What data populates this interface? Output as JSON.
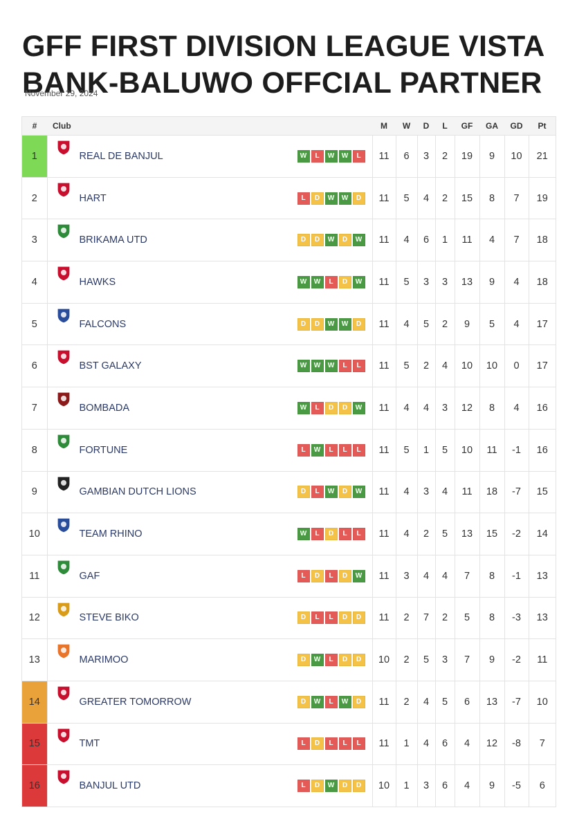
{
  "article": {
    "title": "GFF FIRST DIVISION LEAGUE VISTA BANK-BALUWO OFFCIAL PARTNER",
    "date": "November 29, 2024"
  },
  "table": {
    "headers": [
      "#",
      "Club",
      "M",
      "W",
      "D",
      "L",
      "GF",
      "GA",
      "GD",
      "Pt"
    ],
    "colors": {
      "win": "#4a9a43",
      "loss": "#e35a57",
      "draw": "#f3c246",
      "champion": "#7ed957",
      "playoff": "#e9a13a",
      "relegation": "#dc3a3a"
    },
    "rows": [
      {
        "pos": "1",
        "club": "REAL DE BANJUL",
        "crest": "real-de-banjul-crest",
        "zone": "champion",
        "form": [
          "W",
          "L",
          "W",
          "W",
          "L"
        ],
        "m": "11",
        "w": "6",
        "d": "3",
        "l": "2",
        "gf": "19",
        "ga": "9",
        "gd": "10",
        "pt": "21"
      },
      {
        "pos": "2",
        "club": "HART",
        "crest": "hart-crest",
        "zone": "",
        "form": [
          "L",
          "D",
          "W",
          "W",
          "D"
        ],
        "m": "11",
        "w": "5",
        "d": "4",
        "l": "2",
        "gf": "15",
        "ga": "8",
        "gd": "7",
        "pt": "19"
      },
      {
        "pos": "3",
        "club": "BRIKAMA UTD",
        "crest": "brikama-utd-crest",
        "zone": "",
        "form": [
          "D",
          "D",
          "W",
          "D",
          "W"
        ],
        "m": "11",
        "w": "4",
        "d": "6",
        "l": "1",
        "gf": "11",
        "ga": "4",
        "gd": "7",
        "pt": "18"
      },
      {
        "pos": "4",
        "club": "HAWKS",
        "crest": "hawks-crest",
        "zone": "",
        "form": [
          "W",
          "W",
          "L",
          "D",
          "W"
        ],
        "m": "11",
        "w": "5",
        "d": "3",
        "l": "3",
        "gf": "13",
        "ga": "9",
        "gd": "4",
        "pt": "18"
      },
      {
        "pos": "5",
        "club": "FALCONS",
        "crest": "falcons-crest",
        "zone": "",
        "form": [
          "D",
          "D",
          "W",
          "W",
          "D"
        ],
        "m": "11",
        "w": "4",
        "d": "5",
        "l": "2",
        "gf": "9",
        "ga": "5",
        "gd": "4",
        "pt": "17"
      },
      {
        "pos": "6",
        "club": "BST GALAXY",
        "crest": "bst-galaxy-crest",
        "zone": "",
        "form": [
          "W",
          "W",
          "W",
          "L",
          "L"
        ],
        "m": "11",
        "w": "5",
        "d": "2",
        "l": "4",
        "gf": "10",
        "ga": "10",
        "gd": "0",
        "pt": "17"
      },
      {
        "pos": "7",
        "club": "BOMBADA",
        "crest": "bombada-crest",
        "zone": "",
        "form": [
          "W",
          "L",
          "D",
          "D",
          "W"
        ],
        "m": "11",
        "w": "4",
        "d": "4",
        "l": "3",
        "gf": "12",
        "ga": "8",
        "gd": "4",
        "pt": "16"
      },
      {
        "pos": "8",
        "club": "FORTUNE",
        "crest": "fortune-crest",
        "zone": "",
        "form": [
          "L",
          "W",
          "L",
          "L",
          "L"
        ],
        "m": "11",
        "w": "5",
        "d": "1",
        "l": "5",
        "gf": "10",
        "ga": "11",
        "gd": "-1",
        "pt": "16"
      },
      {
        "pos": "9",
        "club": "GAMBIAN DUTCH LIONS",
        "crest": "gambian-dutch-lions-crest",
        "zone": "",
        "form": [
          "D",
          "L",
          "W",
          "D",
          "W"
        ],
        "m": "11",
        "w": "4",
        "d": "3",
        "l": "4",
        "gf": "11",
        "ga": "18",
        "gd": "-7",
        "pt": "15"
      },
      {
        "pos": "10",
        "club": "TEAM RHINO",
        "crest": "team-rhino-crest",
        "zone": "",
        "form": [
          "W",
          "L",
          "D",
          "L",
          "L"
        ],
        "m": "11",
        "w": "4",
        "d": "2",
        "l": "5",
        "gf": "13",
        "ga": "15",
        "gd": "-2",
        "pt": "14"
      },
      {
        "pos": "11",
        "club": "GAF",
        "crest": "gaf-crest",
        "zone": "",
        "form": [
          "L",
          "D",
          "L",
          "D",
          "W"
        ],
        "m": "11",
        "w": "3",
        "d": "4",
        "l": "4",
        "gf": "7",
        "ga": "8",
        "gd": "-1",
        "pt": "13"
      },
      {
        "pos": "12",
        "club": "STEVE BIKO",
        "crest": "steve-biko-crest",
        "zone": "",
        "form": [
          "D",
          "L",
          "L",
          "D",
          "D"
        ],
        "m": "11",
        "w": "2",
        "d": "7",
        "l": "2",
        "gf": "5",
        "ga": "8",
        "gd": "-3",
        "pt": "13"
      },
      {
        "pos": "13",
        "club": "MARIMOO",
        "crest": "marimoo-crest",
        "zone": "",
        "form": [
          "D",
          "W",
          "L",
          "D",
          "D"
        ],
        "m": "10",
        "w": "2",
        "d": "5",
        "l": "3",
        "gf": "7",
        "ga": "9",
        "gd": "-2",
        "pt": "11"
      },
      {
        "pos": "14",
        "club": "GREATER TOMORROW",
        "crest": "greater-tomorrow-crest",
        "zone": "playoff",
        "form": [
          "D",
          "W",
          "L",
          "W",
          "D"
        ],
        "m": "11",
        "w": "2",
        "d": "4",
        "l": "5",
        "gf": "6",
        "ga": "13",
        "gd": "-7",
        "pt": "10"
      },
      {
        "pos": "15",
        "club": "TMT",
        "crest": "tmt-crest",
        "zone": "relegation",
        "form": [
          "L",
          "D",
          "L",
          "L",
          "L"
        ],
        "m": "11",
        "w": "1",
        "d": "4",
        "l": "6",
        "gf": "4",
        "ga": "12",
        "gd": "-8",
        "pt": "7"
      },
      {
        "pos": "16",
        "club": "BANJUL UTD",
        "crest": "banjul-utd-crest",
        "zone": "relegation",
        "form": [
          "L",
          "D",
          "W",
          "D",
          "D"
        ],
        "m": "10",
        "w": "1",
        "d": "3",
        "l": "6",
        "gf": "4",
        "ga": "9",
        "gd": "-5",
        "pt": "6"
      }
    ]
  }
}
